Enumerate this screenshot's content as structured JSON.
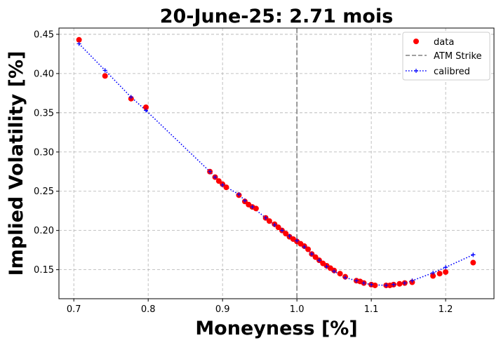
{
  "chart_data": {
    "type": "scatter",
    "title": "20-June-25: 2.71 mois",
    "xlabel": "Moneyness [%]",
    "ylabel": "Implied Volatility [%]",
    "xlim": [
      0.68,
      1.265
    ],
    "ylim": [
      0.113,
      0.458
    ],
    "xticks": [
      0.7,
      0.8,
      0.9,
      1.0,
      1.1,
      1.2
    ],
    "xtick_labels": [
      "0.7",
      "0.8",
      "0.9",
      "1.0",
      "1.1",
      "1.2"
    ],
    "yticks": [
      0.15,
      0.2,
      0.25,
      0.3,
      0.35,
      0.4,
      0.45
    ],
    "ytick_labels": [
      "0.15",
      "0.20",
      "0.25",
      "0.30",
      "0.35",
      "0.40",
      "0.45"
    ],
    "grid": true,
    "legend_position": "top-right",
    "atm_strike": 1.0,
    "colors": {
      "data": "#ff0000",
      "calibred": "#0000ff",
      "atm": "#808080",
      "grid": "#b0b0b0"
    },
    "series": [
      {
        "name": "data",
        "kind": "scatter",
        "x": [
          0.707,
          0.742,
          0.777,
          0.797,
          0.883,
          0.89,
          0.895,
          0.9,
          0.905,
          0.922,
          0.93,
          0.935,
          0.94,
          0.945,
          0.958,
          0.963,
          0.97,
          0.975,
          0.98,
          0.985,
          0.99,
          0.995,
          1.0,
          1.005,
          1.01,
          1.015,
          1.02,
          1.025,
          1.03,
          1.035,
          1.04,
          1.045,
          1.05,
          1.058,
          1.065,
          1.08,
          1.085,
          1.09,
          1.1,
          1.105,
          1.12,
          1.125,
          1.13,
          1.138,
          1.145,
          1.155,
          1.183,
          1.192,
          1.2,
          1.237
        ],
        "y": [
          0.443,
          0.397,
          0.368,
          0.357,
          0.275,
          0.268,
          0.263,
          0.259,
          0.255,
          0.245,
          0.237,
          0.233,
          0.23,
          0.228,
          0.216,
          0.212,
          0.208,
          0.204,
          0.2,
          0.196,
          0.192,
          0.189,
          0.186,
          0.183,
          0.18,
          0.176,
          0.17,
          0.166,
          0.162,
          0.158,
          0.155,
          0.152,
          0.149,
          0.145,
          0.141,
          0.136,
          0.135,
          0.133,
          0.131,
          0.13,
          0.13,
          0.13,
          0.131,
          0.132,
          0.133,
          0.134,
          0.142,
          0.145,
          0.147,
          0.159
        ]
      },
      {
        "name": "calibred",
        "kind": "line-dotted-markers",
        "x": [
          0.707,
          0.742,
          0.777,
          0.797,
          0.883,
          0.89,
          0.9,
          0.922,
          0.93,
          0.94,
          0.958,
          0.97,
          0.98,
          0.99,
          1.0,
          1.01,
          1.02,
          1.03,
          1.04,
          1.05,
          1.065,
          1.08,
          1.09,
          1.1,
          1.12,
          1.13,
          1.145,
          1.155,
          1.183,
          1.2,
          1.237
        ],
        "y": [
          0.438,
          0.404,
          0.37,
          0.353,
          0.275,
          0.268,
          0.258,
          0.246,
          0.238,
          0.23,
          0.216,
          0.207,
          0.2,
          0.193,
          0.187,
          0.179,
          0.17,
          0.162,
          0.154,
          0.148,
          0.14,
          0.136,
          0.133,
          0.131,
          0.13,
          0.131,
          0.133,
          0.136,
          0.146,
          0.153,
          0.169
        ]
      }
    ],
    "legend": [
      {
        "label": "data",
        "style": "dot"
      },
      {
        "label": "ATM Strike",
        "style": "dashed"
      },
      {
        "label": "calibred",
        "style": "dotted-plus"
      }
    ]
  }
}
